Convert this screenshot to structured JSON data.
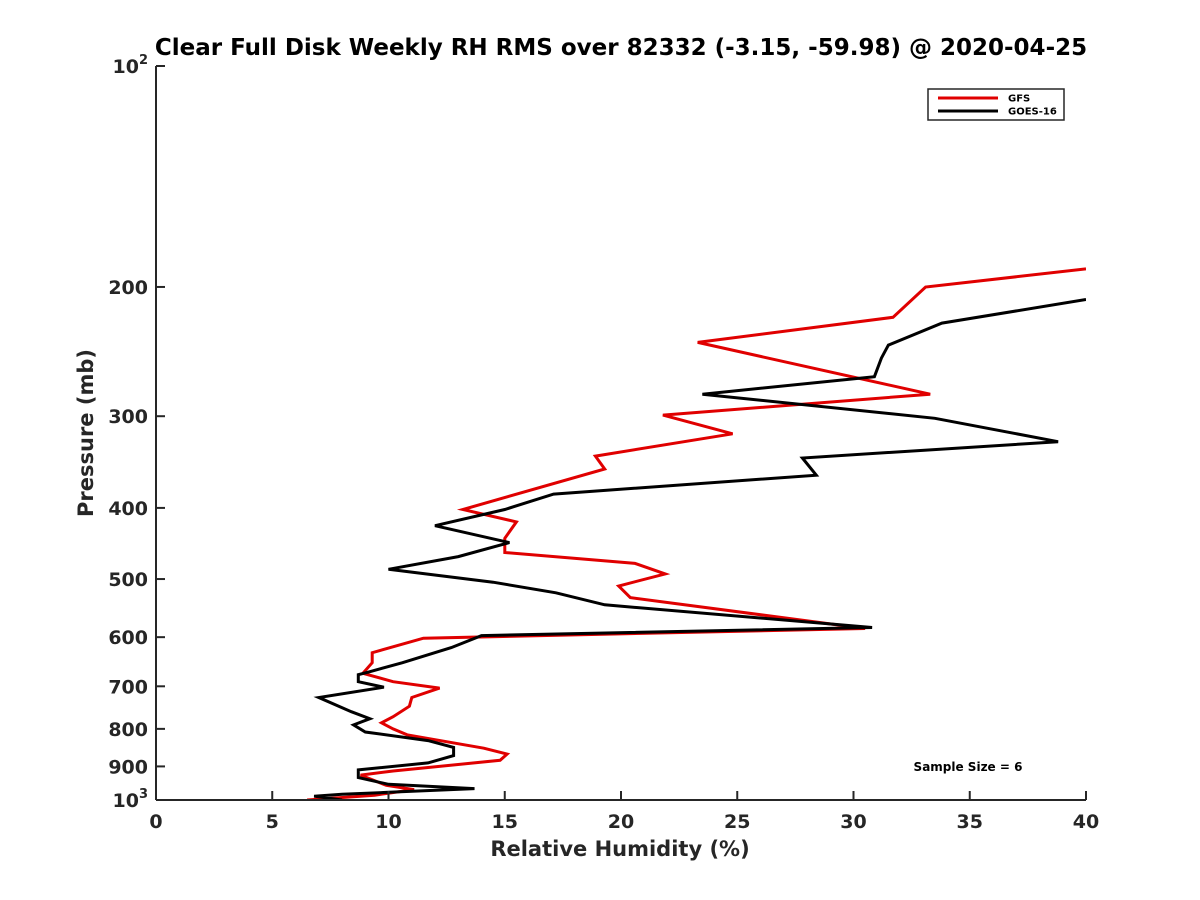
{
  "chart_data": {
    "type": "line",
    "title": "Clear Full Disk Weekly RH RMS over 82332 (-3.15, -59.98) @ 2020-04-25",
    "xlabel": "Relative Humidity (%)",
    "ylabel": "Pressure (mb)",
    "xlim": [
      0,
      40
    ],
    "ylim": [
      100,
      1000
    ],
    "y_scale": "log",
    "y_reversed": true,
    "x_ticks": [
      "0",
      "5",
      "10",
      "15",
      "20",
      "25",
      "30",
      "35",
      "40"
    ],
    "y_ticks": [
      {
        "value": 100,
        "base": "10",
        "exp": "2"
      },
      {
        "value": 200,
        "label": "200"
      },
      {
        "value": 300,
        "label": "300"
      },
      {
        "value": 400,
        "label": "400"
      },
      {
        "value": 500,
        "label": "500"
      },
      {
        "value": 600,
        "label": "600"
      },
      {
        "value": 700,
        "label": "700"
      },
      {
        "value": 800,
        "label": "800"
      },
      {
        "value": 900,
        "label": "900"
      },
      {
        "value": 1000,
        "base": "10",
        "exp": "3"
      }
    ],
    "grid": false,
    "legend": "top-right",
    "annotation": "Sample Size = 6",
    "series": [
      {
        "name": "GFS",
        "color": "#e00000",
        "points": [
          [
            40.0,
            189
          ],
          [
            33.1,
            200
          ],
          [
            31.7,
            220
          ],
          [
            23.3,
            238
          ],
          [
            33.3,
            280
          ],
          [
            21.8,
            299
          ],
          [
            24.8,
            317
          ],
          [
            18.9,
            340
          ],
          [
            19.3,
            354
          ],
          [
            13.2,
            402
          ],
          [
            15.5,
            418
          ],
          [
            15.0,
            440
          ],
          [
            15.0,
            460
          ],
          [
            20.6,
            476
          ],
          [
            21.9,
            492
          ],
          [
            19.9,
            511
          ],
          [
            20.4,
            530
          ],
          [
            30.5,
            584
          ],
          [
            11.5,
            602
          ],
          [
            9.3,
            630
          ],
          [
            9.3,
            650
          ],
          [
            8.9,
            672
          ],
          [
            10.2,
            690
          ],
          [
            12.2,
            704
          ],
          [
            11.0,
            725
          ],
          [
            10.9,
            745
          ],
          [
            10.2,
            770
          ],
          [
            9.7,
            785
          ],
          [
            10.2,
            800
          ],
          [
            10.8,
            815
          ],
          [
            14.1,
            850
          ],
          [
            15.1,
            866
          ],
          [
            14.8,
            883
          ],
          [
            10.2,
            913
          ],
          [
            8.8,
            925
          ],
          [
            9.9,
            955
          ],
          [
            11.1,
            968
          ],
          [
            9.4,
            985
          ],
          [
            6.5,
            1000
          ]
        ]
      },
      {
        "name": "GOES-16",
        "color": "#000000",
        "points": [
          [
            40.0,
            208
          ],
          [
            33.8,
            224
          ],
          [
            31.5,
            240
          ],
          [
            31.2,
            250
          ],
          [
            30.9,
            265
          ],
          [
            23.5,
            280
          ],
          [
            33.5,
            302
          ],
          [
            38.8,
            325
          ],
          [
            27.8,
            342
          ],
          [
            28.4,
            361
          ],
          [
            17.1,
            383
          ],
          [
            15.0,
            402
          ],
          [
            12.0,
            423
          ],
          [
            15.2,
            446
          ],
          [
            13.0,
            466
          ],
          [
            10.0,
            485
          ],
          [
            14.5,
            505
          ],
          [
            17.2,
            522
          ],
          [
            19.3,
            542
          ],
          [
            30.8,
            582
          ],
          [
            14.0,
            597
          ],
          [
            12.7,
            620
          ],
          [
            10.6,
            650
          ],
          [
            9.1,
            670
          ],
          [
            8.7,
            675
          ],
          [
            8.7,
            690
          ],
          [
            9.8,
            702
          ],
          [
            7.0,
            725
          ],
          [
            8.4,
            758
          ],
          [
            9.2,
            775
          ],
          [
            8.5,
            790
          ],
          [
            9.0,
            808
          ],
          [
            11.7,
            830
          ],
          [
            12.8,
            848
          ],
          [
            12.8,
            870
          ],
          [
            11.7,
            890
          ],
          [
            8.7,
            910
          ],
          [
            8.7,
            932
          ],
          [
            10.0,
            952
          ],
          [
            13.7,
            965
          ],
          [
            10.0,
            976
          ],
          [
            8.0,
            982
          ],
          [
            6.8,
            988
          ],
          [
            8.0,
            1000
          ]
        ]
      }
    ]
  }
}
